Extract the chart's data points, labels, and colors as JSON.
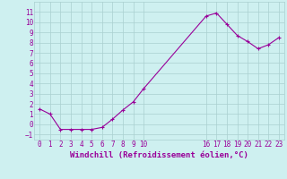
{
  "x": [
    0,
    1,
    2,
    3,
    4,
    5,
    6,
    7,
    8,
    9,
    10,
    16,
    17,
    18,
    19,
    20,
    21,
    22,
    23
  ],
  "y": [
    1.5,
    1.0,
    -0.5,
    -0.5,
    -0.5,
    -0.5,
    -0.3,
    0.5,
    1.4,
    2.2,
    3.5,
    10.6,
    10.9,
    9.8,
    8.7,
    8.1,
    7.4,
    7.8,
    8.5
  ],
  "line_color": "#990099",
  "marker": "+",
  "marker_size": 3,
  "bg_color": "#cef0f0",
  "grid_color": "#aad0d0",
  "axis_label_color": "#990099",
  "xlabel": "Windchill (Refroidissement éolien,°C)",
  "ylabel": "",
  "xlim": [
    -0.5,
    23.5
  ],
  "ylim": [
    -1.5,
    12.0
  ],
  "xticks": [
    0,
    1,
    2,
    3,
    4,
    5,
    6,
    7,
    8,
    9,
    10,
    16,
    17,
    18,
    19,
    20,
    21,
    22,
    23
  ],
  "yticks": [
    -1,
    0,
    1,
    2,
    3,
    4,
    5,
    6,
    7,
    8,
    9,
    10,
    11
  ],
  "tick_label_color": "#990099",
  "tick_label_fontsize": 5.5,
  "xlabel_fontsize": 6.5,
  "line_width": 0.8,
  "marker_color": "#990099",
  "marker_edge_width": 0.8
}
